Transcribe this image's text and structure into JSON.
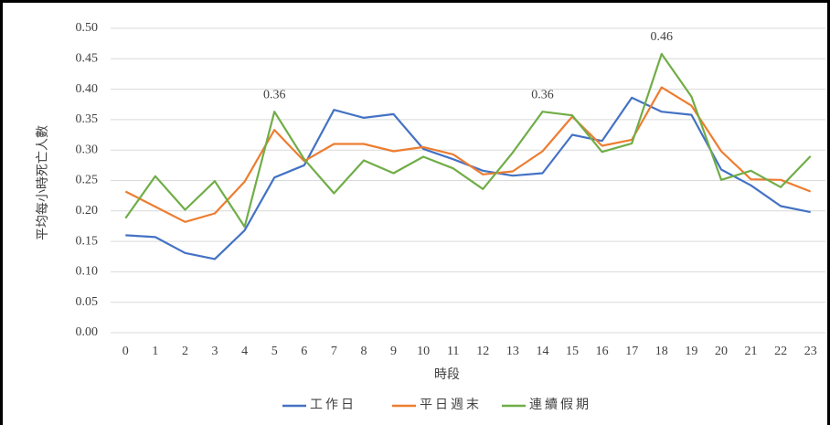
{
  "chart_data": {
    "type": "line",
    "x_label": "時段",
    "y_label": "平均每小時死亡人數",
    "categories": [
      "0",
      "1",
      "2",
      "3",
      "4",
      "5",
      "6",
      "7",
      "8",
      "9",
      "10",
      "11",
      "12",
      "13",
      "14",
      "15",
      "16",
      "17",
      "18",
      "19",
      "20",
      "21",
      "22",
      "23"
    ],
    "ylim": [
      0,
      0.5
    ],
    "yticks": [
      {
        "value": 0,
        "label": "0.00"
      },
      0.05,
      {
        "value": 0.1,
        "label": "0.10"
      },
      0.15,
      {
        "value": 0.2,
        "label": "0.20"
      },
      0.25,
      {
        "value": 0.3,
        "label": "0.30"
      },
      0.35,
      {
        "value": 0.4,
        "label": "0.40"
      },
      0.45,
      {
        "value": 0.5,
        "label": "0.50"
      }
    ],
    "grid": true,
    "legend": "bottom",
    "series": [
      {
        "name": "工作日",
        "color": "#4472c4",
        "values": [
          0.16,
          0.157,
          0.131,
          0.121,
          0.168,
          0.255,
          0.275,
          0.366,
          0.353,
          0.359,
          0.302,
          0.285,
          0.266,
          0.258,
          0.262,
          0.325,
          0.315,
          0.386,
          0.363,
          0.358,
          0.268,
          0.242,
          0.208,
          0.198
        ]
      },
      {
        "name": "平日週末",
        "color": "#ed7d31",
        "values": [
          0.232,
          0.207,
          0.182,
          0.196,
          0.248,
          0.333,
          0.282,
          0.31,
          0.31,
          0.298,
          0.305,
          0.293,
          0.26,
          0.265,
          0.298,
          0.355,
          0.307,
          0.317,
          0.403,
          0.373,
          0.298,
          0.252,
          0.251,
          0.232
        ]
      },
      {
        "name": "連續假期",
        "color": "#70ad47",
        "values": [
          0.188,
          0.257,
          0.202,
          0.249,
          0.174,
          0.363,
          0.285,
          0.229,
          0.283,
          0.262,
          0.289,
          0.27,
          0.236,
          0.296,
          0.363,
          0.357,
          0.297,
          0.311,
          0.458,
          0.388,
          0.251,
          0.266,
          0.239,
          0.29
        ],
        "value_labels": [
          null,
          null,
          null,
          null,
          null,
          "0.36",
          null,
          null,
          null,
          null,
          null,
          null,
          null,
          null,
          "0.36",
          null,
          null,
          null,
          "0.46",
          null,
          null,
          null,
          null,
          null
        ]
      }
    ]
  }
}
